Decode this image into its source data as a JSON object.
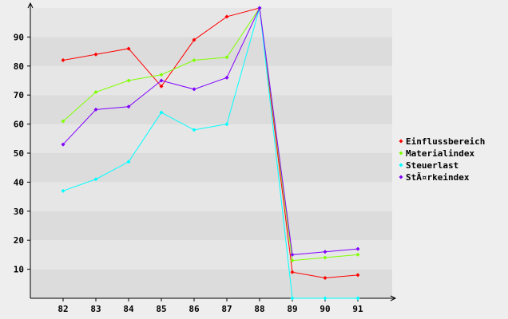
{
  "chart_data": {
    "type": "line",
    "title": "",
    "xlabel": "",
    "ylabel": "",
    "categories": [
      "82",
      "83",
      "84",
      "85",
      "86",
      "87",
      "88",
      "89",
      "90",
      "91"
    ],
    "yticks": [
      "10",
      "20",
      "30",
      "40",
      "50",
      "60",
      "70",
      "80",
      "90"
    ],
    "ylim": [
      0,
      100
    ],
    "grid": "horizontal bands",
    "legend_position": "right",
    "series": [
      {
        "name": "Einflussbereich",
        "color": "#ff0000",
        "values": [
          82,
          84,
          86,
          73,
          89,
          97,
          100,
          9,
          7,
          8
        ]
      },
      {
        "name": "Materialindex",
        "color": "#80ff00",
        "values": [
          61,
          71,
          75,
          77,
          82,
          83,
          100,
          13,
          14,
          15
        ]
      },
      {
        "name": "Steuerlast",
        "color": "#00ffff",
        "values": [
          37,
          41,
          47,
          64,
          58,
          60,
          100,
          0,
          0,
          0
        ]
      },
      {
        "name": "StÃ¤rkeindex",
        "color": "#8000ff",
        "values": [
          53,
          65,
          66,
          75,
          72,
          76,
          100,
          15,
          16,
          17
        ]
      }
    ]
  }
}
